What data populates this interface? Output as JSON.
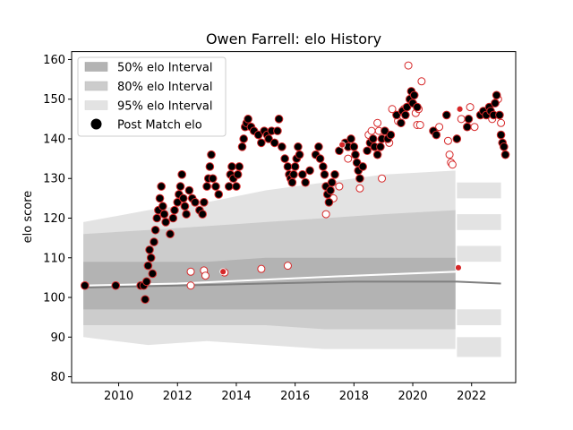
{
  "chart_data": {
    "type": "scatter",
    "title": "Owen Farrell: elo History",
    "xlabel": "",
    "ylabel": "elo score",
    "xlim": [
      2008.4,
      2023.5
    ],
    "ylim": [
      78.5,
      162
    ],
    "xticks": [
      2010,
      2012,
      2014,
      2016,
      2018,
      2020,
      2022
    ],
    "xtick_labels": [
      "2010",
      "2012",
      "2014",
      "2016",
      "2018",
      "2020",
      "2022"
    ],
    "yticks": [
      80,
      90,
      100,
      110,
      120,
      130,
      140,
      150,
      160
    ],
    "ytick_labels": [
      "80",
      "90",
      "100",
      "110",
      "120",
      "130",
      "140",
      "150",
      "160"
    ],
    "legend": {
      "position": "top-left",
      "entries": [
        "50% elo Interval",
        "80% elo Interval",
        "95% elo Interval",
        "Post Match elo"
      ]
    },
    "colors": {
      "band50": "#b3b3b3",
      "band80": "#cccccc",
      "band95": "#e3e3e3",
      "marker_fill": "#000000",
      "marker_edge": "#d62728",
      "line_mean": "#ffffff",
      "line_median": "#808080"
    },
    "bands": {
      "x": [
        2008.8,
        2011.0,
        2013.0,
        2015.0,
        2017.0,
        2019.0,
        2021.45
      ],
      "p95_low": [
        90,
        88,
        89,
        88,
        87,
        87,
        87
      ],
      "p95_high": [
        119,
        122,
        124,
        127,
        129,
        131,
        132
      ],
      "p80_low": [
        93,
        93,
        93,
        93,
        92,
        92,
        92
      ],
      "p80_high": [
        116,
        117,
        118,
        119,
        120,
        121,
        122
      ],
      "p50_low": [
        97,
        97,
        97,
        97,
        97,
        97,
        97
      ],
      "p50_high": [
        109,
        109,
        109,
        110,
        110,
        110,
        110
      ]
    },
    "right_ribbons": [
      {
        "x": [
          2021.5,
          2023.0
        ],
        "low": 85,
        "high": 90
      },
      {
        "x": [
          2021.5,
          2023.0
        ],
        "low": 93,
        "high": 97
      },
      {
        "x": [
          2021.5,
          2023.0
        ],
        "low": 109,
        "high": 113
      },
      {
        "x": [
          2021.5,
          2023.0
        ],
        "low": 117,
        "high": 121
      },
      {
        "x": [
          2021.5,
          2023.0
        ],
        "low": 125,
        "high": 129
      }
    ],
    "mean_line": {
      "x": [
        2008.8,
        2012.0,
        2015.0,
        2018.0,
        2021.5
      ],
      "y": [
        103,
        103.5,
        104.5,
        105.5,
        106.5
      ]
    },
    "median_line": {
      "x": [
        2008.8,
        2012.0,
        2015.0,
        2018.0,
        2021.5,
        2023.0
      ],
      "y": [
        102.5,
        103,
        103.5,
        104,
        104,
        103.5
      ]
    },
    "post_match_points": [
      [
        2008.85,
        103
      ],
      [
        2009.9,
        103
      ],
      [
        2010.75,
        103
      ],
      [
        2010.85,
        103
      ],
      [
        2010.9,
        99.5
      ],
      [
        2010.95,
        104
      ],
      [
        2011.0,
        108
      ],
      [
        2011.05,
        112
      ],
      [
        2011.1,
        110
      ],
      [
        2011.15,
        106
      ],
      [
        2011.2,
        114
      ],
      [
        2011.25,
        117
      ],
      [
        2011.3,
        120
      ],
      [
        2011.35,
        122
      ],
      [
        2011.4,
        125
      ],
      [
        2011.45,
        128
      ],
      [
        2011.5,
        123
      ],
      [
        2011.55,
        121
      ],
      [
        2011.6,
        119
      ],
      [
        2011.75,
        116
      ],
      [
        2011.85,
        120
      ],
      [
        2011.9,
        122
      ],
      [
        2012.0,
        124
      ],
      [
        2012.05,
        126
      ],
      [
        2012.1,
        128
      ],
      [
        2012.15,
        131
      ],
      [
        2012.2,
        125
      ],
      [
        2012.25,
        123
      ],
      [
        2012.3,
        121
      ],
      [
        2012.4,
        127
      ],
      [
        2012.5,
        125
      ],
      [
        2012.6,
        124
      ],
      [
        2012.75,
        122
      ],
      [
        2012.85,
        121
      ],
      [
        2012.9,
        124
      ],
      [
        2013.0,
        128
      ],
      [
        2013.05,
        130
      ],
      [
        2013.1,
        133
      ],
      [
        2013.15,
        136
      ],
      [
        2013.2,
        130
      ],
      [
        2013.3,
        128
      ],
      [
        2013.4,
        126
      ],
      [
        2013.75,
        128
      ],
      [
        2013.8,
        131
      ],
      [
        2013.85,
        133
      ],
      [
        2013.9,
        130
      ],
      [
        2014.0,
        128
      ],
      [
        2014.05,
        131
      ],
      [
        2014.1,
        133
      ],
      [
        2014.2,
        138
      ],
      [
        2014.25,
        140
      ],
      [
        2014.3,
        143
      ],
      [
        2014.35,
        144
      ],
      [
        2014.4,
        145
      ],
      [
        2014.5,
        143
      ],
      [
        2014.6,
        142
      ],
      [
        2014.75,
        141
      ],
      [
        2014.85,
        139
      ],
      [
        2014.95,
        142
      ],
      [
        2015.05,
        141
      ],
      [
        2015.1,
        140
      ],
      [
        2015.2,
        142
      ],
      [
        2015.3,
        139
      ],
      [
        2015.4,
        142
      ],
      [
        2015.45,
        145
      ],
      [
        2015.55,
        138
      ],
      [
        2015.65,
        135
      ],
      [
        2015.75,
        133
      ],
      [
        2015.8,
        131
      ],
      [
        2015.85,
        130
      ],
      [
        2015.9,
        129
      ],
      [
        2015.95,
        131
      ],
      [
        2016.0,
        133
      ],
      [
        2016.05,
        135
      ],
      [
        2016.1,
        138
      ],
      [
        2016.15,
        136
      ],
      [
        2016.25,
        131
      ],
      [
        2016.35,
        129
      ],
      [
        2016.5,
        132
      ],
      [
        2016.7,
        136
      ],
      [
        2016.8,
        138
      ],
      [
        2016.85,
        135
      ],
      [
        2016.95,
        133
      ],
      [
        2017.0,
        131
      ],
      [
        2017.05,
        128
      ],
      [
        2017.1,
        126
      ],
      [
        2017.15,
        124
      ],
      [
        2017.2,
        127
      ],
      [
        2017.25,
        129
      ],
      [
        2017.35,
        131
      ],
      [
        2017.5,
        137
      ],
      [
        2017.7,
        139
      ],
      [
        2017.8,
        138
      ],
      [
        2017.9,
        140
      ],
      [
        2018.0,
        138
      ],
      [
        2018.05,
        136
      ],
      [
        2018.1,
        134
      ],
      [
        2018.15,
        132
      ],
      [
        2018.2,
        130
      ],
      [
        2018.3,
        133
      ],
      [
        2018.45,
        137
      ],
      [
        2018.55,
        139
      ],
      [
        2018.65,
        140
      ],
      [
        2018.7,
        138
      ],
      [
        2018.8,
        136
      ],
      [
        2018.9,
        138
      ],
      [
        2018.95,
        140
      ],
      [
        2019.05,
        142
      ],
      [
        2019.15,
        140
      ],
      [
        2019.25,
        141
      ],
      [
        2019.45,
        146
      ],
      [
        2019.6,
        144
      ],
      [
        2019.65,
        147
      ],
      [
        2019.75,
        146
      ],
      [
        2019.8,
        148
      ],
      [
        2019.9,
        150
      ],
      [
        2019.95,
        152
      ],
      [
        2020.0,
        149
      ],
      [
        2020.05,
        151
      ],
      [
        2020.15,
        148
      ],
      [
        2020.7,
        142
      ],
      [
        2020.8,
        141
      ],
      [
        2021.15,
        146
      ],
      [
        2021.5,
        140
      ],
      [
        2021.85,
        143
      ],
      [
        2021.9,
        145
      ],
      [
        2022.3,
        146
      ],
      [
        2022.4,
        147
      ],
      [
        2022.5,
        146
      ],
      [
        2022.6,
        148
      ],
      [
        2022.65,
        147
      ],
      [
        2022.75,
        146
      ],
      [
        2022.8,
        149
      ],
      [
        2022.85,
        151
      ],
      [
        2022.95,
        146
      ],
      [
        2023.0,
        141
      ],
      [
        2023.05,
        139
      ],
      [
        2023.1,
        138
      ],
      [
        2023.15,
        136
      ]
    ],
    "projection_points": [
      [
        2012.45,
        103
      ],
      [
        2012.45,
        106.5
      ],
      [
        2012.9,
        106.8
      ],
      [
        2012.95,
        105.5
      ],
      [
        2014.85,
        107.2
      ],
      [
        2015.75,
        108
      ],
      [
        2017.05,
        121
      ],
      [
        2017.3,
        125
      ],
      [
        2017.5,
        128
      ],
      [
        2017.8,
        135
      ],
      [
        2018.2,
        127.5
      ],
      [
        2018.5,
        141
      ],
      [
        2018.6,
        142
      ],
      [
        2018.8,
        144
      ],
      [
        2018.85,
        142
      ],
      [
        2018.95,
        130
      ],
      [
        2019.2,
        139
      ],
      [
        2019.3,
        147.5
      ],
      [
        2019.5,
        144.5
      ],
      [
        2019.7,
        147.5
      ],
      [
        2019.85,
        158.5
      ],
      [
        2020.1,
        146.5
      ],
      [
        2020.15,
        143.5
      ],
      [
        2020.25,
        143.5
      ],
      [
        2020.3,
        154.5
      ],
      [
        2020.2,
        147.5
      ],
      [
        2020.9,
        143
      ],
      [
        2021.2,
        139.5
      ],
      [
        2021.25,
        136
      ],
      [
        2021.3,
        134
      ],
      [
        2021.35,
        133.5
      ],
      [
        2021.65,
        145
      ],
      [
        2021.95,
        148
      ],
      [
        2022.1,
        143
      ],
      [
        2022.5,
        146
      ],
      [
        2022.7,
        145
      ],
      [
        2022.9,
        150
      ],
      [
        2023.0,
        144
      ],
      [
        2013.6,
        106.3
      ]
    ],
    "highlight_points": [
      [
        2013.55,
        106.5
      ],
      [
        2017.6,
        138.5
      ],
      [
        2021.55,
        107.5
      ],
      [
        2021.6,
        147.5
      ]
    ]
  }
}
